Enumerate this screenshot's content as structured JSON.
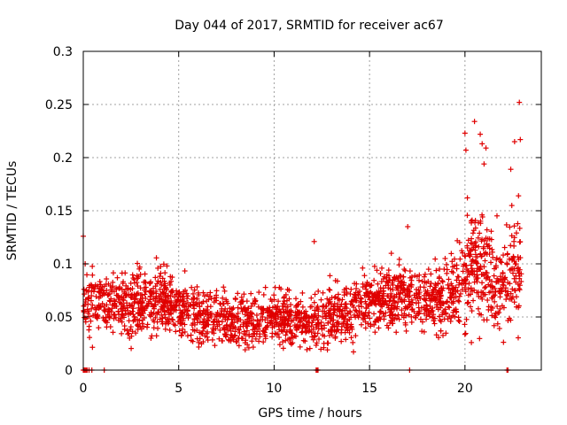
{
  "chart_data": {
    "type": "scatter",
    "title": "Day 044 of 2017, SRMTID for receiver ac67",
    "xlabel": "GPS time / hours",
    "ylabel": "SRMTID / TECUs",
    "xlim": [
      0,
      24
    ],
    "ylim": [
      0,
      0.3
    ],
    "x_ticks": [
      0,
      5,
      10,
      15,
      20
    ],
    "x_tick_labels": [
      "0",
      "5",
      "10",
      "15",
      "20"
    ],
    "y_ticks": [
      0,
      0.05,
      0.1,
      0.15,
      0.2,
      0.25,
      0.3
    ],
    "y_tick_labels": [
      "0",
      "0.05",
      "0.1",
      "0.15",
      "0.2",
      "0.25",
      "0.3"
    ],
    "grid": true,
    "marker": "plus",
    "marker_color": "#e00000",
    "series": [
      {
        "name": "SRMTID",
        "profile_hours": [
          0,
          1,
          2,
          3,
          4,
          5,
          6,
          7,
          8,
          9,
          10,
          11,
          12,
          13,
          14,
          15,
          16,
          17,
          18,
          19,
          20,
          20.5,
          21,
          21.5,
          22,
          22.5,
          23
        ],
        "profile_median": [
          0.062,
          0.065,
          0.062,
          0.062,
          0.065,
          0.056,
          0.052,
          0.05,
          0.045,
          0.048,
          0.05,
          0.046,
          0.045,
          0.05,
          0.058,
          0.065,
          0.068,
          0.07,
          0.068,
          0.065,
          0.08,
          0.1,
          0.1,
          0.085,
          0.08,
          0.09,
          0.1
        ],
        "profile_spread": [
          0.03,
          0.03,
          0.03,
          0.03,
          0.035,
          0.03,
          0.03,
          0.028,
          0.025,
          0.028,
          0.025,
          0.025,
          0.028,
          0.028,
          0.03,
          0.03,
          0.03,
          0.03,
          0.03,
          0.032,
          0.055,
          0.06,
          0.06,
          0.05,
          0.045,
          0.06,
          0.06
        ],
        "zero_points_x": [
          0.0,
          0.05,
          0.1,
          0.15,
          0.2,
          0.3,
          0.45,
          1.1,
          12.2,
          12.25,
          12.3,
          17.1,
          22.2,
          22.25
        ],
        "outliers": [
          {
            "x": 0.0,
            "y": 0.126
          },
          {
            "x": 0.1,
            "y": 0.1
          },
          {
            "x": 20.0,
            "y": 0.223
          },
          {
            "x": 20.05,
            "y": 0.207
          },
          {
            "x": 20.5,
            "y": 0.234
          },
          {
            "x": 20.8,
            "y": 0.222
          },
          {
            "x": 20.9,
            "y": 0.213
          },
          {
            "x": 21.0,
            "y": 0.194
          },
          {
            "x": 21.1,
            "y": 0.209
          },
          {
            "x": 22.4,
            "y": 0.189
          },
          {
            "x": 22.6,
            "y": 0.215
          },
          {
            "x": 22.85,
            "y": 0.252
          },
          {
            "x": 22.9,
            "y": 0.217
          },
          {
            "x": 17.0,
            "y": 0.135
          },
          {
            "x": 12.1,
            "y": 0.121
          }
        ]
      }
    ]
  }
}
